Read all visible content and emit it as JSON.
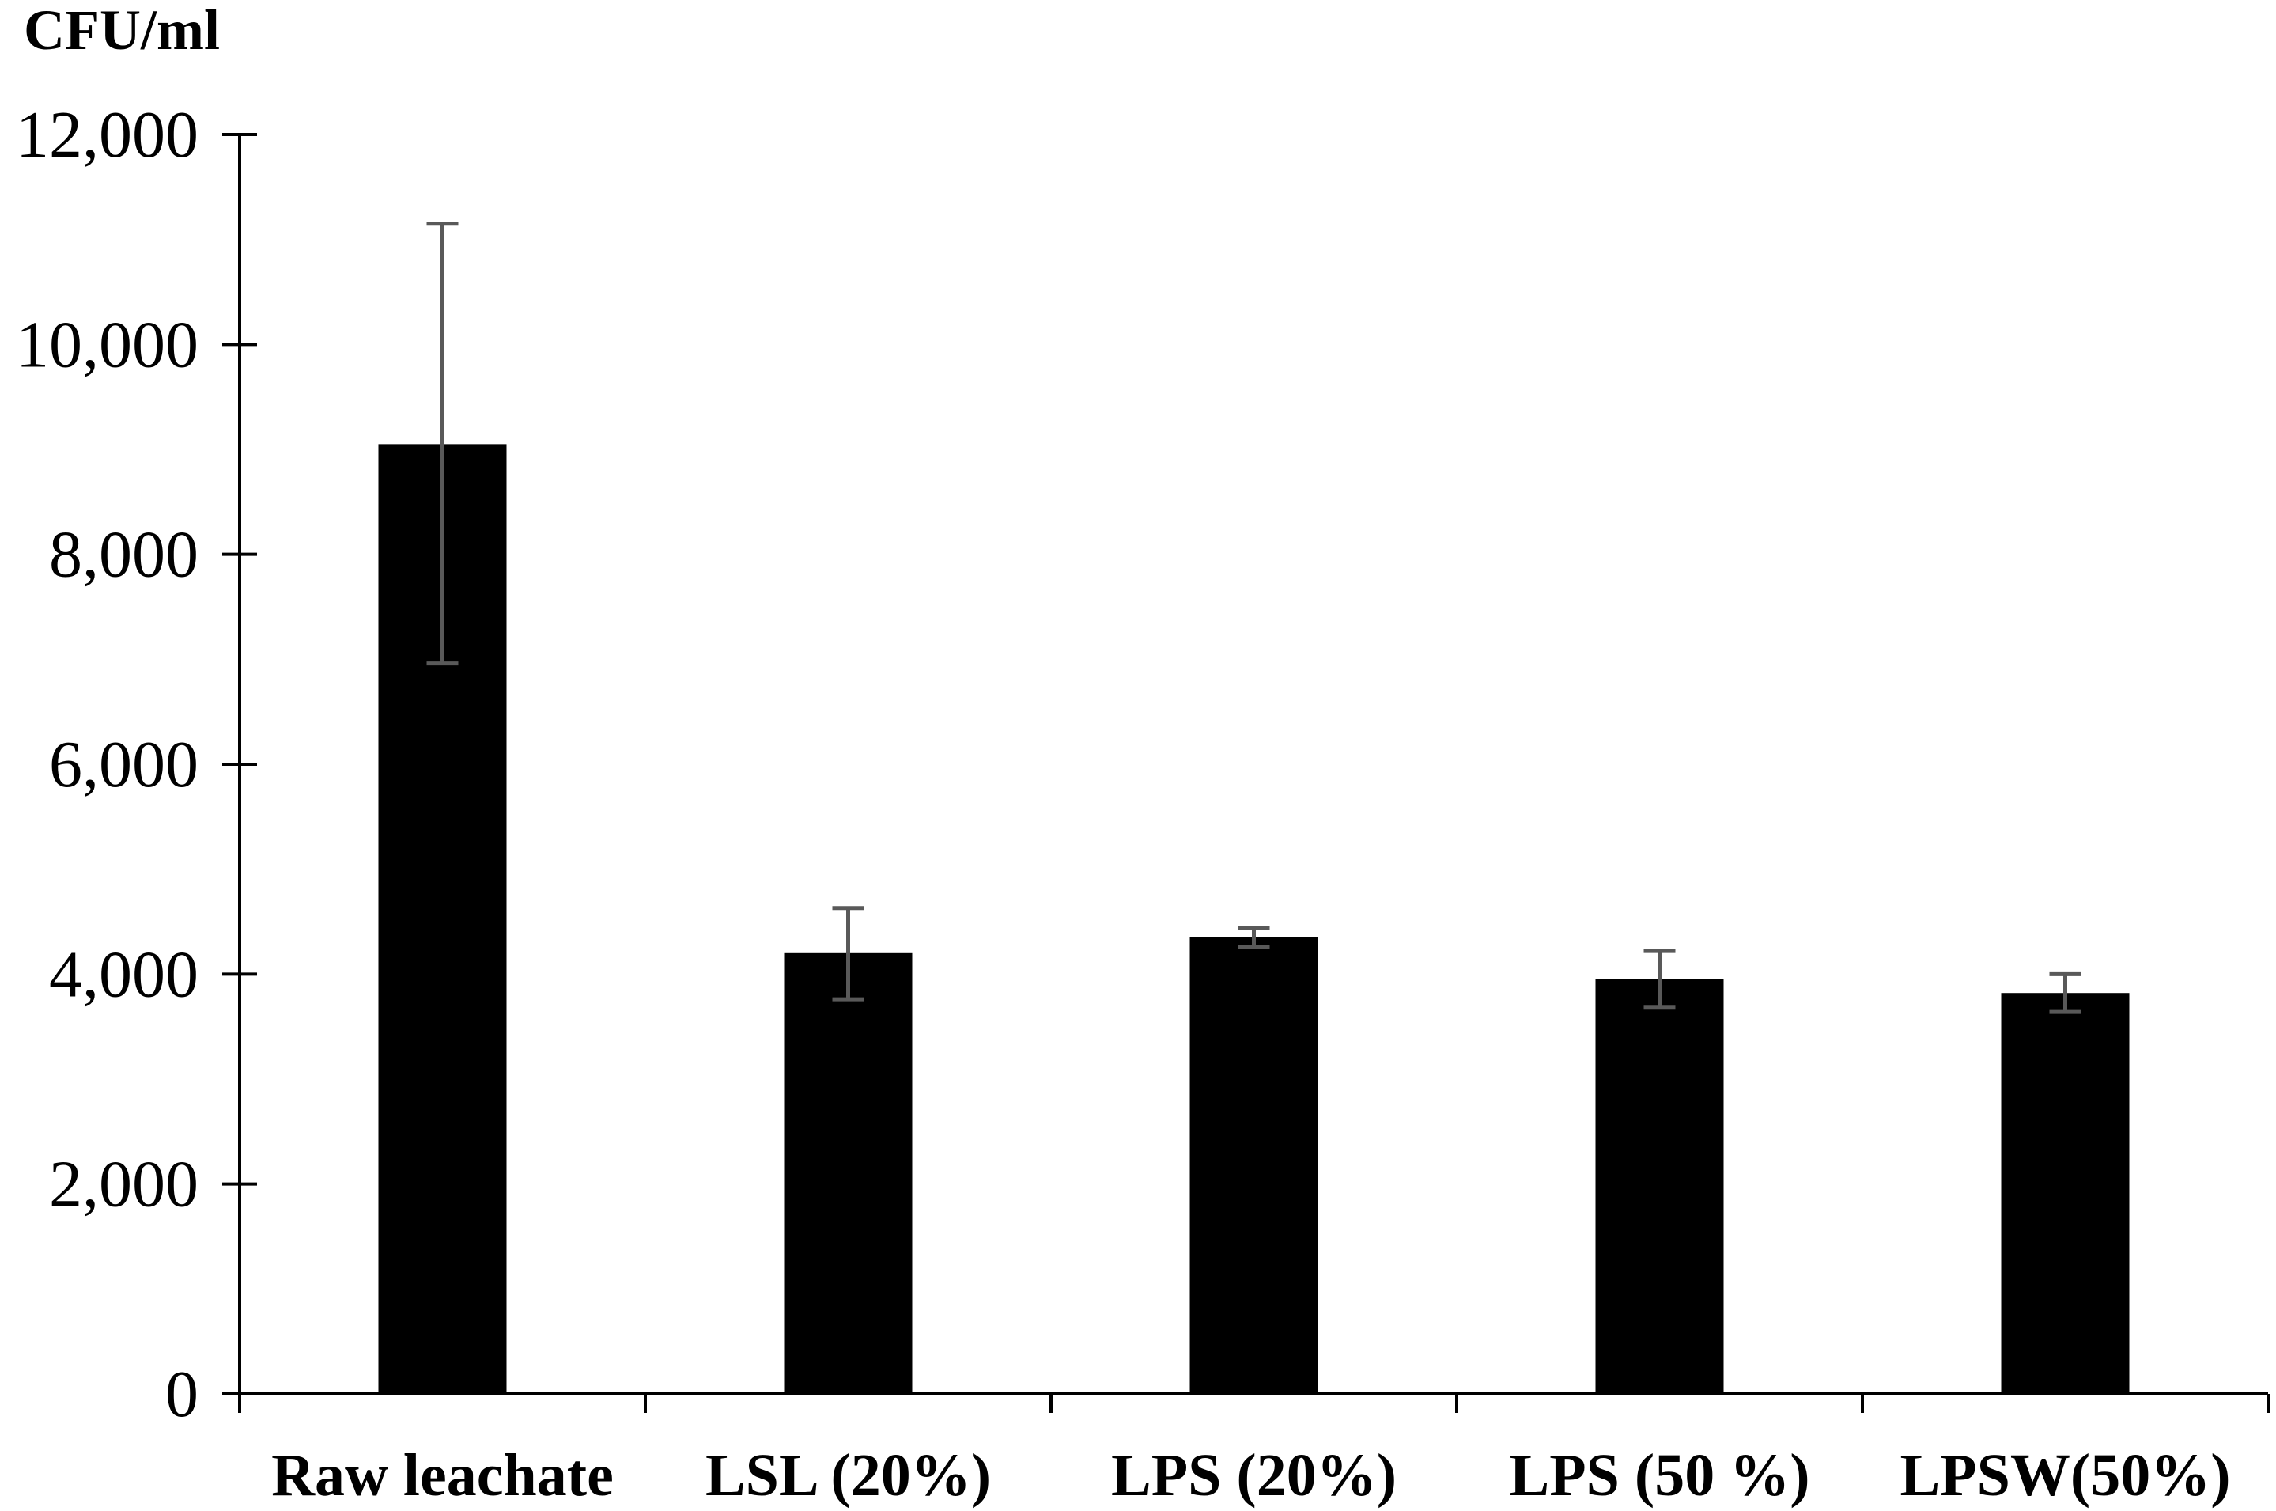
{
  "chart_data": {
    "type": "bar",
    "title": "",
    "xlabel": "",
    "ylabel": "CFU/ml",
    "ylim": [
      0,
      12000
    ],
    "yticks": [
      0,
      2000,
      4000,
      6000,
      8000,
      10000,
      12000
    ],
    "ytick_labels": [
      "0",
      "2,000",
      "4,000",
      "6,000",
      "8,000",
      "10,000",
      "12,000"
    ],
    "categories": [
      "Raw leachate",
      "LSL (20%)",
      "LPS (20%)",
      "LPS (50 %)",
      "LPSW(50%)"
    ],
    "values": [
      9050,
      4200,
      4350,
      3950,
      3820
    ],
    "error_upper": [
      11150,
      4630,
      4440,
      4220,
      4000
    ],
    "error_lower": [
      6960,
      3760,
      4260,
      3680,
      3640
    ],
    "grid": false,
    "legend": "none",
    "bar_color": "#000000",
    "error_color": "#595959"
  }
}
